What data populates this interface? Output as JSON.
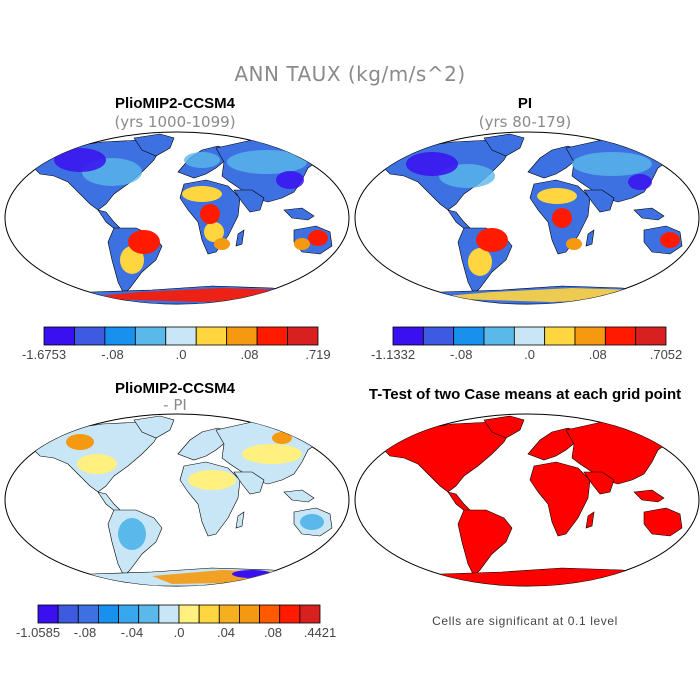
{
  "main_title": "ANN TAUX (kg/m/s^2)",
  "colors": {
    "land_fill": "#ff0000",
    "ocean": "#ffffff",
    "outline": "#000000"
  },
  "panels": [
    {
      "title": "PlioMIP2-CCSM4",
      "subtitle": "(yrs 1000-1099)",
      "colorbar": {
        "colors": [
          "#3a10f0",
          "#3d5ae0",
          "#1890ee",
          "#5ab8ea",
          "#c8e6f5",
          "#ffd540",
          "#f59a10",
          "#ff1a00",
          "#d82020"
        ],
        "labels": [
          "-1.6753",
          "-.08",
          ".0",
          ".08",
          ".719"
        ]
      }
    },
    {
      "title": "PI",
      "subtitle": "(yrs 80-179)",
      "colorbar": {
        "colors": [
          "#3a10f0",
          "#3d5ae0",
          "#1890ee",
          "#5ab8ea",
          "#c8e6f5",
          "#ffd540",
          "#f59a10",
          "#ff1a00",
          "#d82020"
        ],
        "labels": [
          "-1.1332",
          "-.08",
          ".0",
          ".08",
          ".7052"
        ]
      }
    },
    {
      "title": "PlioMIP2-CCSM4",
      "subtitle": "- PI",
      "colorbar": {
        "colors": [
          "#3a10f0",
          "#3d5ae0",
          "#3d70e0",
          "#1890ee",
          "#38a8ee",
          "#5ab8ea",
          "#c8e6f5",
          "#fff080",
          "#ffd540",
          "#f5b020",
          "#f59a10",
          "#ff5a00",
          "#ff1a00",
          "#d82020"
        ],
        "labels": [
          "-1.0585",
          "-.08",
          "-.04",
          ".0",
          ".04",
          ".08",
          ".4421"
        ]
      }
    },
    {
      "title": "T-Test of two Case means at each grid point",
      "note": "Cells are significant at 0.1 level"
    }
  ],
  "chart_data": [
    {
      "type": "heatmap",
      "title": "PlioMIP2-CCSM4",
      "subtitle": "(yrs 1000-1099)",
      "variable": "ANN TAUX (kg/m/s^2)",
      "projection": "Robinson",
      "range": [
        -1.6753,
        0.719
      ],
      "colorbar_ticks": [
        -1.6753,
        -0.08,
        0.0,
        0.08,
        0.719
      ]
    },
    {
      "type": "heatmap",
      "title": "PI",
      "subtitle": "(yrs 80-179)",
      "variable": "ANN TAUX (kg/m/s^2)",
      "projection": "Robinson",
      "range": [
        -1.1332,
        0.7052
      ],
      "colorbar_ticks": [
        -1.1332,
        -0.08,
        0.0,
        0.08,
        0.7052
      ]
    },
    {
      "type": "heatmap",
      "title": "PlioMIP2-CCSM4",
      "subtitle": "- PI",
      "variable": "ANN TAUX (kg/m/s^2)",
      "projection": "Robinson",
      "range": [
        -1.0585,
        0.4421
      ],
      "colorbar_ticks": [
        -1.0585,
        -0.08,
        -0.04,
        0.0,
        0.04,
        0.08,
        0.4421
      ]
    },
    {
      "type": "heatmap",
      "title": "T-Test of two Case means at each grid point",
      "note": "Cells are significant at 0.1 level",
      "projection": "Robinson",
      "significance_level": 0.1
    }
  ]
}
